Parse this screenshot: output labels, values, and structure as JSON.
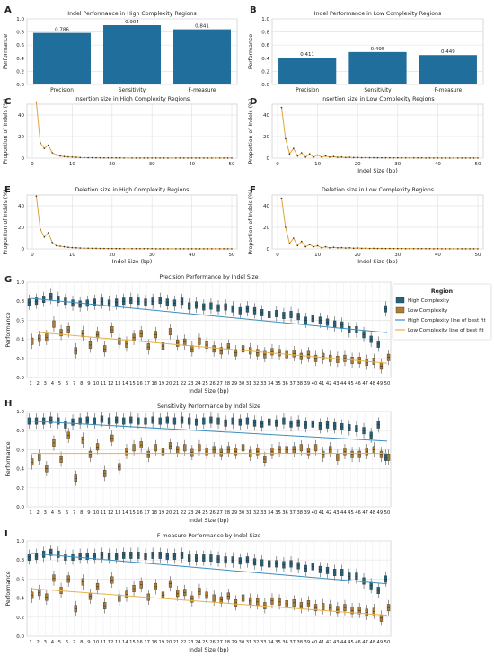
{
  "panels": [
    {
      "letter": "A",
      "title": "Indel Performance in High Complexity Regions",
      "ylabel": "Performance",
      "xlabel": ""
    },
    {
      "letter": "B",
      "title": "Indel Performance in Low Complexity Regions",
      "ylabel": "Performance",
      "xlabel": ""
    },
    {
      "letter": "C",
      "title": "Insertion size in High Complexity Regions",
      "ylabel": "Proportion of Indels (%)",
      "xlabel": ""
    },
    {
      "letter": "D",
      "title": "Insertion size in Low Complexity Regions",
      "ylabel": "Proportion of Indels (%)",
      "xlabel": "Indel Size (bp)"
    },
    {
      "letter": "E",
      "title": "Deletion size in High Complexity Regions",
      "ylabel": "Proportion of Indels (%)",
      "xlabel": "Indel Size (bp)"
    },
    {
      "letter": "F",
      "title": "Deletion size in Low Complexity Regions",
      "ylabel": "Proportion of Indels (%)",
      "xlabel": "Indel Size (bp)"
    },
    {
      "letter": "G",
      "title": "Precision Performance by Indel Size",
      "ylabel": "Performance",
      "xlabel": "Indel Size (bp)"
    },
    {
      "letter": "H",
      "title": "Sensitivity Performance by Indel Size",
      "ylabel": "Performance",
      "xlabel": "Indel Size (bp)"
    },
    {
      "letter": "I",
      "title": "F-measure Performance by Indel Size",
      "ylabel": "Performance",
      "xlabel": "Indel Size (bp)"
    }
  ],
  "legend": {
    "title": "Region",
    "items": [
      "High Complexity",
      "Low Complexity",
      "High Complexity line of best fit",
      "Low Complexity line of best fit"
    ]
  },
  "colors": {
    "bar": "#1f6e9c",
    "high": "#23627f",
    "low": "#b07d2e",
    "line_high": "#3c8ec0",
    "line_low": "#e8b04c",
    "dist_line": "#e0a53c",
    "dist_marker": "#333333"
  },
  "chart_data": [
    {
      "type": "bar",
      "title": "Indel Performance in High Complexity Regions",
      "categories": [
        "Precision",
        "Sensitivity",
        "F-measure"
      ],
      "values": [
        0.786,
        0.904,
        0.841
      ],
      "value_labels": [
        "0.786",
        "0.904",
        "0.841"
      ],
      "ylim": [
        0,
        1.0
      ],
      "yticks": [
        "0.0",
        "0.2",
        "0.4",
        "0.6",
        "0.8",
        "1.0"
      ],
      "grid": true
    },
    {
      "type": "bar",
      "title": "Indel Performance in Low Complexity Regions",
      "categories": [
        "Precision",
        "Sensitivity",
        "F-measure"
      ],
      "values": [
        0.411,
        0.495,
        0.449
      ],
      "value_labels": [
        "0.411",
        "0.495",
        "0.449"
      ],
      "ylim": [
        0,
        1.0
      ],
      "yticks": [
        "0.0",
        "0.2",
        "0.4",
        "0.6",
        "0.8",
        "1.0"
      ],
      "grid": true
    },
    {
      "type": "line",
      "title": "Insertion size in High Complexity Regions",
      "x": [
        1,
        2,
        3,
        4,
        5,
        6,
        7,
        8,
        9,
        10,
        11,
        12,
        13,
        14,
        15,
        16,
        17,
        18,
        19,
        20,
        21,
        22,
        23,
        24,
        25,
        26,
        27,
        28,
        29,
        30,
        31,
        32,
        33,
        34,
        35,
        36,
        37,
        38,
        39,
        40,
        41,
        42,
        43,
        44,
        45,
        46,
        47,
        48,
        49,
        50
      ],
      "values": [
        52,
        14,
        9,
        12,
        5,
        3,
        2,
        1.5,
        1.2,
        1,
        0.8,
        0.6,
        0.5,
        0.4,
        0.4,
        0.3,
        0.3,
        0.2,
        0.2,
        0.2,
        0.2,
        0.2,
        0.1,
        0.1,
        0.1,
        0.1,
        0.1,
        0.1,
        0.1,
        0.1,
        0.1,
        0.1,
        0.1,
        0.1,
        0.1,
        0.1,
        0.1,
        0.1,
        0.1,
        0.1,
        0.1,
        0.1,
        0.1,
        0.1,
        0.1,
        0.1,
        0.1,
        0.1,
        0.1,
        0.1
      ],
      "ylim": [
        0,
        50
      ],
      "xlim": [
        0,
        50
      ],
      "yticks": [
        "0",
        "20",
        "40"
      ],
      "xticks": [
        "0",
        "10",
        "20",
        "30",
        "40",
        "50"
      ],
      "grid": true
    },
    {
      "type": "line",
      "title": "Insertion size in Low Complexity Regions",
      "x": [
        1,
        2,
        3,
        4,
        5,
        6,
        7,
        8,
        9,
        10,
        11,
        12,
        13,
        14,
        15,
        16,
        17,
        18,
        19,
        20,
        21,
        22,
        23,
        24,
        25,
        26,
        27,
        28,
        29,
        30,
        31,
        32,
        33,
        34,
        35,
        36,
        37,
        38,
        39,
        40,
        41,
        42,
        43,
        44,
        45,
        46,
        47,
        48,
        49,
        50
      ],
      "values": [
        47,
        18,
        4,
        9,
        2,
        5,
        1,
        4,
        1,
        3,
        1,
        2,
        1,
        1.5,
        0.8,
        1,
        0.6,
        0.8,
        0.5,
        0.6,
        0.4,
        0.5,
        0.4,
        0.4,
        0.3,
        0.3,
        0.3,
        0.3,
        0.2,
        0.3,
        0.2,
        0.2,
        0.2,
        0.2,
        0.2,
        0.2,
        0.1,
        0.2,
        0.1,
        0.1,
        0.1,
        0.1,
        0.1,
        0.1,
        0.1,
        0.1,
        0.1,
        0.1,
        0.1,
        0.1
      ],
      "ylim": [
        0,
        50
      ],
      "xlim": [
        0,
        50
      ],
      "yticks": [
        "0",
        "20",
        "40"
      ],
      "xticks": [
        "0",
        "10",
        "20",
        "30",
        "40",
        "50"
      ],
      "grid": true
    },
    {
      "type": "line",
      "title": "Deletion size in High Complexity Regions",
      "x": [
        1,
        2,
        3,
        4,
        5,
        6,
        7,
        8,
        9,
        10,
        11,
        12,
        13,
        14,
        15,
        16,
        17,
        18,
        19,
        20,
        21,
        22,
        23,
        24,
        25,
        26,
        27,
        28,
        29,
        30,
        31,
        32,
        33,
        34,
        35,
        36,
        37,
        38,
        39,
        40,
        41,
        42,
        43,
        44,
        45,
        46,
        47,
        48,
        49,
        50
      ],
      "values": [
        49,
        18,
        11,
        15,
        6,
        3,
        2.5,
        2,
        1.5,
        1.2,
        1,
        0.8,
        0.7,
        0.6,
        0.5,
        0.5,
        0.4,
        0.4,
        0.3,
        0.3,
        0.3,
        0.3,
        0.2,
        0.2,
        0.2,
        0.2,
        0.2,
        0.2,
        0.2,
        0.2,
        0.1,
        0.1,
        0.1,
        0.1,
        0.1,
        0.1,
        0.1,
        0.1,
        0.1,
        0.1,
        0.1,
        0.1,
        0.1,
        0.1,
        0.1,
        0.1,
        0.1,
        0.1,
        0.1,
        0.1
      ],
      "ylim": [
        0,
        50
      ],
      "xlim": [
        0,
        50
      ],
      "yticks": [
        "0",
        "20",
        "40"
      ],
      "xticks": [
        "0",
        "10",
        "20",
        "30",
        "40",
        "50"
      ],
      "grid": true
    },
    {
      "type": "line",
      "title": "Deletion size in Low Complexity Regions",
      "x": [
        1,
        2,
        3,
        4,
        5,
        6,
        7,
        8,
        9,
        10,
        11,
        12,
        13,
        14,
        15,
        16,
        17,
        18,
        19,
        20,
        21,
        22,
        23,
        24,
        25,
        26,
        27,
        28,
        29,
        30,
        31,
        32,
        33,
        34,
        35,
        36,
        37,
        38,
        39,
        40,
        41,
        42,
        43,
        44,
        45,
        46,
        47,
        48,
        49,
        50
      ],
      "values": [
        47,
        20,
        5,
        10,
        3,
        7,
        2,
        4,
        2,
        3,
        1,
        2,
        1,
        1.5,
        1,
        1.2,
        0.8,
        1,
        0.6,
        0.8,
        0.5,
        0.6,
        0.4,
        0.5,
        0.4,
        0.4,
        0.3,
        0.4,
        0.3,
        0.3,
        0.3,
        0.2,
        0.3,
        0.2,
        0.2,
        0.2,
        0.2,
        0.2,
        0.1,
        0.2,
        0.1,
        0.1,
        0.1,
        0.1,
        0.1,
        0.1,
        0.1,
        0.1,
        0.1,
        0.1
      ],
      "ylim": [
        0,
        50
      ],
      "xlim": [
        0,
        50
      ],
      "yticks": [
        "0",
        "20",
        "40"
      ],
      "xticks": [
        "0",
        "10",
        "20",
        "30",
        "40",
        "50"
      ],
      "grid": true
    },
    {
      "type": "box",
      "title": "Precision Performance by Indel Size",
      "categories": [
        "1",
        "2",
        "3",
        "4",
        "5",
        "6",
        "7",
        "8",
        "9",
        "10",
        "11",
        "12",
        "13",
        "14",
        "15",
        "16",
        "17",
        "18",
        "19",
        "20",
        "21",
        "22",
        "23",
        "24",
        "25",
        "26",
        "27",
        "28",
        "29",
        "30",
        "31",
        "32",
        "33",
        "34",
        "35",
        "36",
        "37",
        "38",
        "39",
        "40",
        "41",
        "42",
        "43",
        "44",
        "45",
        "46",
        "47",
        "48",
        "49",
        "50"
      ],
      "ylim": [
        0,
        1.0
      ],
      "yticks": [
        "0.0",
        "0.2",
        "0.4",
        "0.6",
        "0.8",
        "1.0"
      ],
      "series": [
        {
          "name": "High Complexity",
          "medians": [
            0.79,
            0.8,
            0.82,
            0.85,
            0.82,
            0.8,
            0.78,
            0.77,
            0.78,
            0.79,
            0.8,
            0.78,
            0.79,
            0.8,
            0.81,
            0.8,
            0.79,
            0.8,
            0.81,
            0.79,
            0.78,
            0.8,
            0.75,
            0.76,
            0.74,
            0.75,
            0.73,
            0.74,
            0.72,
            0.7,
            0.72,
            0.7,
            0.68,
            0.66,
            0.67,
            0.65,
            0.66,
            0.64,
            0.6,
            0.62,
            0.6,
            0.58,
            0.56,
            0.55,
            0.5,
            0.5,
            0.45,
            0.4,
            0.35,
            0.72
          ]
        },
        {
          "name": "Low Complexity",
          "medians": [
            0.38,
            0.41,
            0.42,
            0.56,
            0.47,
            0.5,
            0.28,
            0.46,
            0.34,
            0.45,
            0.3,
            0.5,
            0.38,
            0.35,
            0.42,
            0.46,
            0.32,
            0.45,
            0.33,
            0.48,
            0.36,
            0.37,
            0.3,
            0.38,
            0.34,
            0.3,
            0.28,
            0.32,
            0.26,
            0.3,
            0.28,
            0.26,
            0.24,
            0.27,
            0.26,
            0.24,
            0.25,
            0.22,
            0.24,
            0.2,
            0.22,
            0.2,
            0.19,
            0.2,
            0.18,
            0.18,
            0.16,
            0.17,
            0.12,
            0.21
          ]
        }
      ],
      "fit": {
        "high": [
          0.83,
          0.47
        ],
        "low": [
          0.48,
          0.15
        ]
      }
    },
    {
      "type": "box",
      "title": "Sensitivity Performance by Indel Size",
      "categories": [
        "1",
        "2",
        "3",
        "4",
        "5",
        "6",
        "7",
        "8",
        "9",
        "10",
        "11",
        "12",
        "13",
        "14",
        "15",
        "16",
        "17",
        "18",
        "19",
        "20",
        "21",
        "22",
        "23",
        "24",
        "25",
        "26",
        "27",
        "28",
        "29",
        "30",
        "31",
        "32",
        "33",
        "34",
        "35",
        "36",
        "37",
        "38",
        "39",
        "40",
        "41",
        "42",
        "43",
        "44",
        "45",
        "46",
        "47",
        "48",
        "49",
        "50"
      ],
      "ylim": [
        0,
        1.0
      ],
      "yticks": [
        "0.0",
        "0.2",
        "0.4",
        "0.6",
        "0.8",
        "1.0"
      ],
      "series": [
        {
          "name": "High Complexity",
          "medians": [
            0.9,
            0.9,
            0.9,
            0.91,
            0.9,
            0.86,
            0.89,
            0.9,
            0.91,
            0.9,
            0.92,
            0.9,
            0.91,
            0.9,
            0.91,
            0.9,
            0.9,
            0.91,
            0.9,
            0.91,
            0.9,
            0.91,
            0.9,
            0.89,
            0.9,
            0.91,
            0.9,
            0.88,
            0.9,
            0.89,
            0.9,
            0.88,
            0.87,
            0.89,
            0.88,
            0.9,
            0.87,
            0.88,
            0.86,
            0.87,
            0.85,
            0.86,
            0.85,
            0.84,
            0.83,
            0.82,
            0.8,
            0.75,
            0.86,
            0.52
          ]
        },
        {
          "name": "Low Complexity",
          "medians": [
            0.47,
            0.52,
            0.4,
            0.67,
            0.5,
            0.75,
            0.3,
            0.7,
            0.55,
            0.63,
            0.35,
            0.72,
            0.42,
            0.58,
            0.62,
            0.65,
            0.55,
            0.62,
            0.58,
            0.64,
            0.6,
            0.62,
            0.57,
            0.62,
            0.58,
            0.6,
            0.57,
            0.6,
            0.58,
            0.62,
            0.56,
            0.58,
            0.5,
            0.58,
            0.6,
            0.6,
            0.6,
            0.62,
            0.58,
            0.62,
            0.55,
            0.6,
            0.52,
            0.58,
            0.55,
            0.55,
            0.58,
            0.6,
            0.55,
            0.52
          ]
        }
      ],
      "fit": {
        "high": [
          0.9,
          0.69
        ],
        "low": [
          0.56,
          0.56
        ]
      }
    },
    {
      "type": "box",
      "title": "F-measure Performance by Indel Size",
      "categories": [
        "1",
        "2",
        "3",
        "4",
        "5",
        "6",
        "7",
        "8",
        "9",
        "10",
        "11",
        "12",
        "13",
        "14",
        "15",
        "16",
        "17",
        "18",
        "19",
        "20",
        "21",
        "22",
        "23",
        "24",
        "25",
        "26",
        "27",
        "28",
        "29",
        "30",
        "31",
        "32",
        "33",
        "34",
        "35",
        "36",
        "37",
        "38",
        "39",
        "40",
        "41",
        "42",
        "43",
        "44",
        "45",
        "46",
        "47",
        "48",
        "49",
        "50"
      ],
      "ylim": [
        0,
        1.0
      ],
      "yticks": [
        "0.0",
        "0.2",
        "0.4",
        "0.6",
        "0.8",
        "1.0"
      ],
      "series": [
        {
          "name": "High Complexity",
          "medians": [
            0.83,
            0.84,
            0.86,
            0.88,
            0.86,
            0.83,
            0.83,
            0.84,
            0.84,
            0.84,
            0.85,
            0.84,
            0.84,
            0.85,
            0.85,
            0.85,
            0.84,
            0.85,
            0.85,
            0.84,
            0.84,
            0.85,
            0.82,
            0.82,
            0.82,
            0.82,
            0.81,
            0.8,
            0.8,
            0.79,
            0.8,
            0.78,
            0.77,
            0.76,
            0.76,
            0.75,
            0.76,
            0.74,
            0.71,
            0.73,
            0.7,
            0.69,
            0.67,
            0.67,
            0.63,
            0.63,
            0.58,
            0.53,
            0.48,
            0.6
          ]
        },
        {
          "name": "Low Complexity",
          "medians": [
            0.43,
            0.46,
            0.41,
            0.61,
            0.48,
            0.6,
            0.29,
            0.57,
            0.42,
            0.52,
            0.32,
            0.59,
            0.4,
            0.44,
            0.5,
            0.54,
            0.41,
            0.52,
            0.43,
            0.55,
            0.45,
            0.46,
            0.39,
            0.47,
            0.43,
            0.4,
            0.38,
            0.42,
            0.35,
            0.4,
            0.37,
            0.36,
            0.32,
            0.37,
            0.36,
            0.34,
            0.35,
            0.32,
            0.34,
            0.3,
            0.31,
            0.3,
            0.28,
            0.3,
            0.27,
            0.27,
            0.25,
            0.26,
            0.19,
            0.3
          ]
        }
      ],
      "fit": {
        "high": [
          0.87,
          0.55
        ],
        "low": [
          0.5,
          0.22
        ]
      }
    }
  ]
}
